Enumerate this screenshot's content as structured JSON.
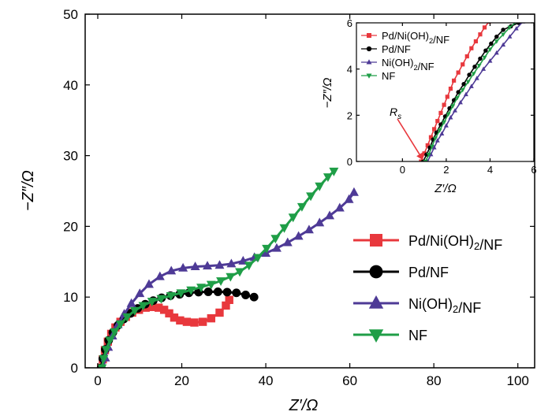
{
  "chart_data": [
    {
      "type": "scatter",
      "xlabel": "Z′/Ω",
      "ylabel": "−Z″/Ω",
      "xlim": [
        -3,
        104
      ],
      "ylim": [
        0,
        50
      ],
      "xticks": [
        "0",
        "20",
        "40",
        "60",
        "80",
        "100"
      ],
      "yticks": [
        "0",
        "10",
        "20",
        "30",
        "40",
        "50"
      ],
      "legend_position": "right-middle",
      "series": [
        {
          "name": "Pd/Ni(OH)₂/NF",
          "color": "#e8383d",
          "marker": "square",
          "points": [
            [
              0.8,
              0
            ],
            [
              1.2,
              1.2
            ],
            [
              1.7,
              2.5
            ],
            [
              2.4,
              3.7
            ],
            [
              3.2,
              4.8
            ],
            [
              4.2,
              5.7
            ],
            [
              5.4,
              6.5
            ],
            [
              6.7,
              7.2
            ],
            [
              8.2,
              7.8
            ],
            [
              9.8,
              8.2
            ],
            [
              11.4,
              8.5
            ],
            [
              13,
              8.6
            ],
            [
              14.5,
              8.5
            ],
            [
              15.8,
              8.2
            ],
            [
              17,
              7.7
            ],
            [
              18.2,
              7.1
            ],
            [
              19.6,
              6.7
            ],
            [
              21.2,
              6.5
            ],
            [
              23,
              6.4
            ],
            [
              25,
              6.5
            ],
            [
              27,
              7
            ],
            [
              29,
              7.8
            ],
            [
              30.5,
              8.8
            ],
            [
              31.3,
              9.6
            ]
          ]
        },
        {
          "name": "Pd/NF",
          "color": "#000000",
          "marker": "circle",
          "points": [
            [
              0.8,
              0
            ],
            [
              1.2,
              1.3
            ],
            [
              1.8,
              2.6
            ],
            [
              2.6,
              3.9
            ],
            [
              3.6,
              5
            ],
            [
              4.8,
              6
            ],
            [
              6.2,
              6.9
            ],
            [
              7.8,
              7.7
            ],
            [
              9.5,
              8.4
            ],
            [
              11.3,
              9
            ],
            [
              13.2,
              9.5
            ],
            [
              15.2,
              9.9
            ],
            [
              17.3,
              10.2
            ],
            [
              19.5,
              10.4
            ],
            [
              21.7,
              10.6
            ],
            [
              24,
              10.7
            ],
            [
              26.3,
              10.75
            ],
            [
              28.6,
              10.75
            ],
            [
              30.8,
              10.7
            ],
            [
              33,
              10.6
            ],
            [
              35.2,
              10.3
            ],
            [
              37.2,
              10
            ]
          ]
        },
        {
          "name": "Ni(OH)₂/NF",
          "color": "#4e3a96",
          "marker": "triangle-up",
          "points": [
            [
              1.3,
              0
            ],
            [
              1.8,
              1.4
            ],
            [
              2.5,
              2.9
            ],
            [
              3.5,
              4.5
            ],
            [
              4.8,
              6.1
            ],
            [
              6.3,
              7.6
            ],
            [
              8,
              9.1
            ],
            [
              10,
              10.5
            ],
            [
              12.2,
              11.8
            ],
            [
              14.8,
              12.9
            ],
            [
              17.5,
              13.7
            ],
            [
              20.3,
              14.1
            ],
            [
              23.2,
              14.3
            ],
            [
              26.1,
              14.4
            ],
            [
              29,
              14.5
            ],
            [
              31.8,
              14.7
            ],
            [
              34.6,
              15.1
            ],
            [
              37.3,
              15.6
            ],
            [
              40,
              16.2
            ],
            [
              42.6,
              16.9
            ],
            [
              45.2,
              17.7
            ],
            [
              47.8,
              18.6
            ],
            [
              50.3,
              19.5
            ],
            [
              52.8,
              20.5
            ],
            [
              55.2,
              21.5
            ],
            [
              57.6,
              22.6
            ],
            [
              59.8,
              23.8
            ],
            [
              61,
              24.8
            ]
          ]
        },
        {
          "name": "NF",
          "color": "#1f9e47",
          "marker": "triangle-down",
          "points": [
            [
              1,
              0
            ],
            [
              1.4,
              1.3
            ],
            [
              2,
              2.6
            ],
            [
              2.9,
              3.9
            ],
            [
              4,
              5.1
            ],
            [
              5.4,
              6.2
            ],
            [
              7,
              7.2
            ],
            [
              8.8,
              8.1
            ],
            [
              10.8,
              8.8
            ],
            [
              12.9,
              9.4
            ],
            [
              15.1,
              9.8
            ],
            [
              17.4,
              10.2
            ],
            [
              19.8,
              10.6
            ],
            [
              22.2,
              11
            ],
            [
              24.6,
              11.4
            ],
            [
              27,
              11.8
            ],
            [
              29.3,
              12.3
            ],
            [
              31.6,
              12.9
            ],
            [
              33.8,
              13.6
            ],
            [
              36,
              14.5
            ],
            [
              38.1,
              15.6
            ],
            [
              40.2,
              16.9
            ],
            [
              42.3,
              18.3
            ],
            [
              44.4,
              19.8
            ],
            [
              46.5,
              21.3
            ],
            [
              48.6,
              22.8
            ],
            [
              50.7,
              24.3
            ],
            [
              52.8,
              25.7
            ],
            [
              54.8,
              27
            ],
            [
              56.2,
              27.8
            ]
          ]
        }
      ]
    },
    {
      "type": "scatter",
      "xlabel": "Z′/Ω",
      "ylabel": "−Z″/Ω",
      "xlim": [
        -2.1,
        6
      ],
      "ylim": [
        0,
        6
      ],
      "xticks": [
        "0",
        "2",
        "4",
        "6"
      ],
      "yticks": [
        "0",
        "2",
        "4",
        "6"
      ],
      "legend_position": "top-left",
      "annotation": "Rs",
      "annotation_target": [
        0.95,
        0.05
      ],
      "series": [
        {
          "name": "Pd/Ni(OH)₂/NF",
          "color": "#e8383d",
          "marker": "square",
          "points": [
            [
              0.85,
              0
            ],
            [
              1.0,
              0.35
            ],
            [
              1.15,
              0.7
            ],
            [
              1.3,
              1.05
            ],
            [
              1.45,
              1.4
            ],
            [
              1.6,
              1.75
            ],
            [
              1.75,
              2.1
            ],
            [
              1.9,
              2.45
            ],
            [
              2.05,
              2.8
            ],
            [
              2.2,
              3.15
            ],
            [
              2.35,
              3.5
            ],
            [
              2.55,
              3.85
            ],
            [
              2.75,
              4.2
            ],
            [
              2.95,
              4.55
            ],
            [
              3.15,
              4.9
            ],
            [
              3.35,
              5.2
            ],
            [
              3.55,
              5.5
            ],
            [
              3.75,
              5.8
            ],
            [
              3.95,
              6.05
            ]
          ]
        },
        {
          "name": "Pd/NF",
          "color": "#000000",
          "marker": "circle",
          "points": [
            [
              0.95,
              0
            ],
            [
              1.1,
              0.3
            ],
            [
              1.25,
              0.6
            ],
            [
              1.4,
              0.95
            ],
            [
              1.55,
              1.25
            ],
            [
              1.75,
              1.6
            ],
            [
              1.95,
              1.95
            ],
            [
              2.15,
              2.3
            ],
            [
              2.35,
              2.65
            ],
            [
              2.55,
              3.0
            ],
            [
              2.8,
              3.35
            ],
            [
              3.05,
              3.75
            ],
            [
              3.3,
              4.1
            ],
            [
              3.55,
              4.45
            ],
            [
              3.8,
              4.8
            ],
            [
              4.05,
              5.1
            ],
            [
              4.3,
              5.4
            ],
            [
              4.6,
              5.7
            ],
            [
              4.95,
              5.85
            ],
            [
              5.3,
              6.0
            ]
          ]
        },
        {
          "name": "Ni(OH)₂/NF",
          "color": "#4e3a96",
          "marker": "triangle-up",
          "points": [
            [
              1.15,
              0
            ],
            [
              1.3,
              0.3
            ],
            [
              1.45,
              0.6
            ],
            [
              1.6,
              0.9
            ],
            [
              1.8,
              1.2
            ],
            [
              2.0,
              1.55
            ],
            [
              2.2,
              1.9
            ],
            [
              2.4,
              2.2
            ],
            [
              2.65,
              2.55
            ],
            [
              2.9,
              2.9
            ],
            [
              3.15,
              3.25
            ],
            [
              3.4,
              3.6
            ],
            [
              3.7,
              4.0
            ],
            [
              4.0,
              4.35
            ],
            [
              4.3,
              4.7
            ],
            [
              4.6,
              5.05
            ],
            [
              4.9,
              5.4
            ],
            [
              5.2,
              5.75
            ],
            [
              5.5,
              6.05
            ]
          ]
        },
        {
          "name": "NF",
          "color": "#1f9e47",
          "marker": "triangle-down",
          "points": [
            [
              1.05,
              0
            ],
            [
              1.2,
              0.3
            ],
            [
              1.35,
              0.65
            ],
            [
              1.5,
              1.0
            ],
            [
              1.7,
              1.35
            ],
            [
              1.9,
              1.7
            ],
            [
              2.1,
              2.05
            ],
            [
              2.3,
              2.4
            ],
            [
              2.5,
              2.75
            ],
            [
              2.75,
              3.1
            ],
            [
              3.0,
              3.45
            ],
            [
              3.25,
              3.8
            ],
            [
              3.5,
              4.15
            ],
            [
              3.75,
              4.5
            ],
            [
              4.0,
              4.85
            ],
            [
              4.3,
              5.2
            ],
            [
              4.6,
              5.5
            ],
            [
              4.9,
              5.8
            ],
            [
              5.2,
              6.05
            ]
          ]
        }
      ]
    }
  ]
}
